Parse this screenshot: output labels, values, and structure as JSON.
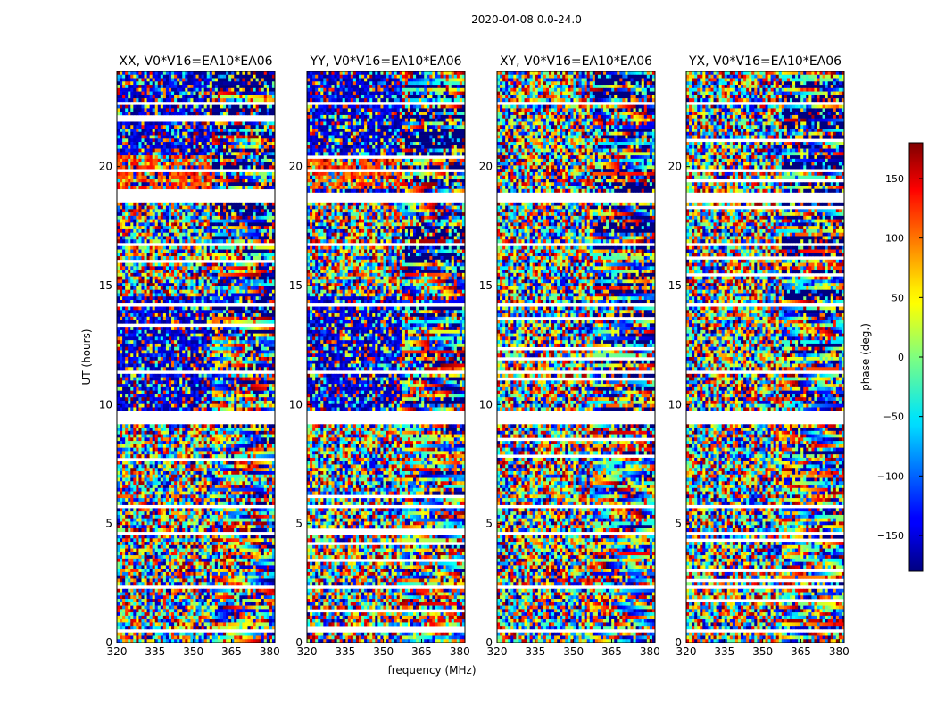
{
  "figure": {
    "suptitle": "2020-04-08 0.0-24.0",
    "xlabel": "frequency (MHz)",
    "ylabel": "UT (hours)",
    "colorbar_label": "phase (deg.)"
  },
  "chart_data": {
    "type": "heatmap",
    "title": "2020-04-08 0.0-24.0",
    "colormap": "jet",
    "colorbar": {
      "label": "phase (deg.)",
      "range": [
        -180,
        180
      ],
      "ticks": [
        -150,
        -100,
        -50,
        0,
        50,
        100,
        150
      ],
      "tick_labels": [
        "−150",
        "−100",
        "−50",
        "0",
        "50",
        "100",
        "150"
      ]
    },
    "xlim": [
      320,
      382
    ],
    "ylim": [
      0,
      24
    ],
    "x_ticks": [
      320,
      335,
      350,
      365,
      380
    ],
    "x_tick_labels": [
      "320",
      "335",
      "350",
      "365",
      "380"
    ],
    "y_ticks": [
      0,
      5,
      10,
      15,
      20
    ],
    "y_tick_labels": [
      "0",
      "5",
      "10",
      "15",
      "20"
    ],
    "xlabel": "frequency (MHz)",
    "ylabel": "UT (hours)",
    "panels": [
      {
        "title": "XX, V0*V16=EA10*EA06",
        "polarization": "XX"
      },
      {
        "title": "YY, V0*V16=EA10*EA06",
        "polarization": "YY"
      },
      {
        "title": "XY, V0*V16=EA10*EA06",
        "polarization": "XY"
      },
      {
        "title": "YX, V0*V16=EA10*EA06",
        "polarization": "YX"
      }
    ],
    "flagged_time_ranges_hours": [
      [
        0.4,
        0.6
      ],
      [
        2.3,
        2.45
      ],
      [
        4.45,
        4.6
      ],
      [
        5.6,
        5.75
      ],
      [
        9.2,
        9.75
      ],
      [
        11.35,
        11.5
      ],
      [
        14.1,
        14.3
      ],
      [
        16.6,
        16.75
      ],
      [
        18.55,
        18.85
      ],
      [
        22.6,
        22.75
      ]
    ]
  }
}
